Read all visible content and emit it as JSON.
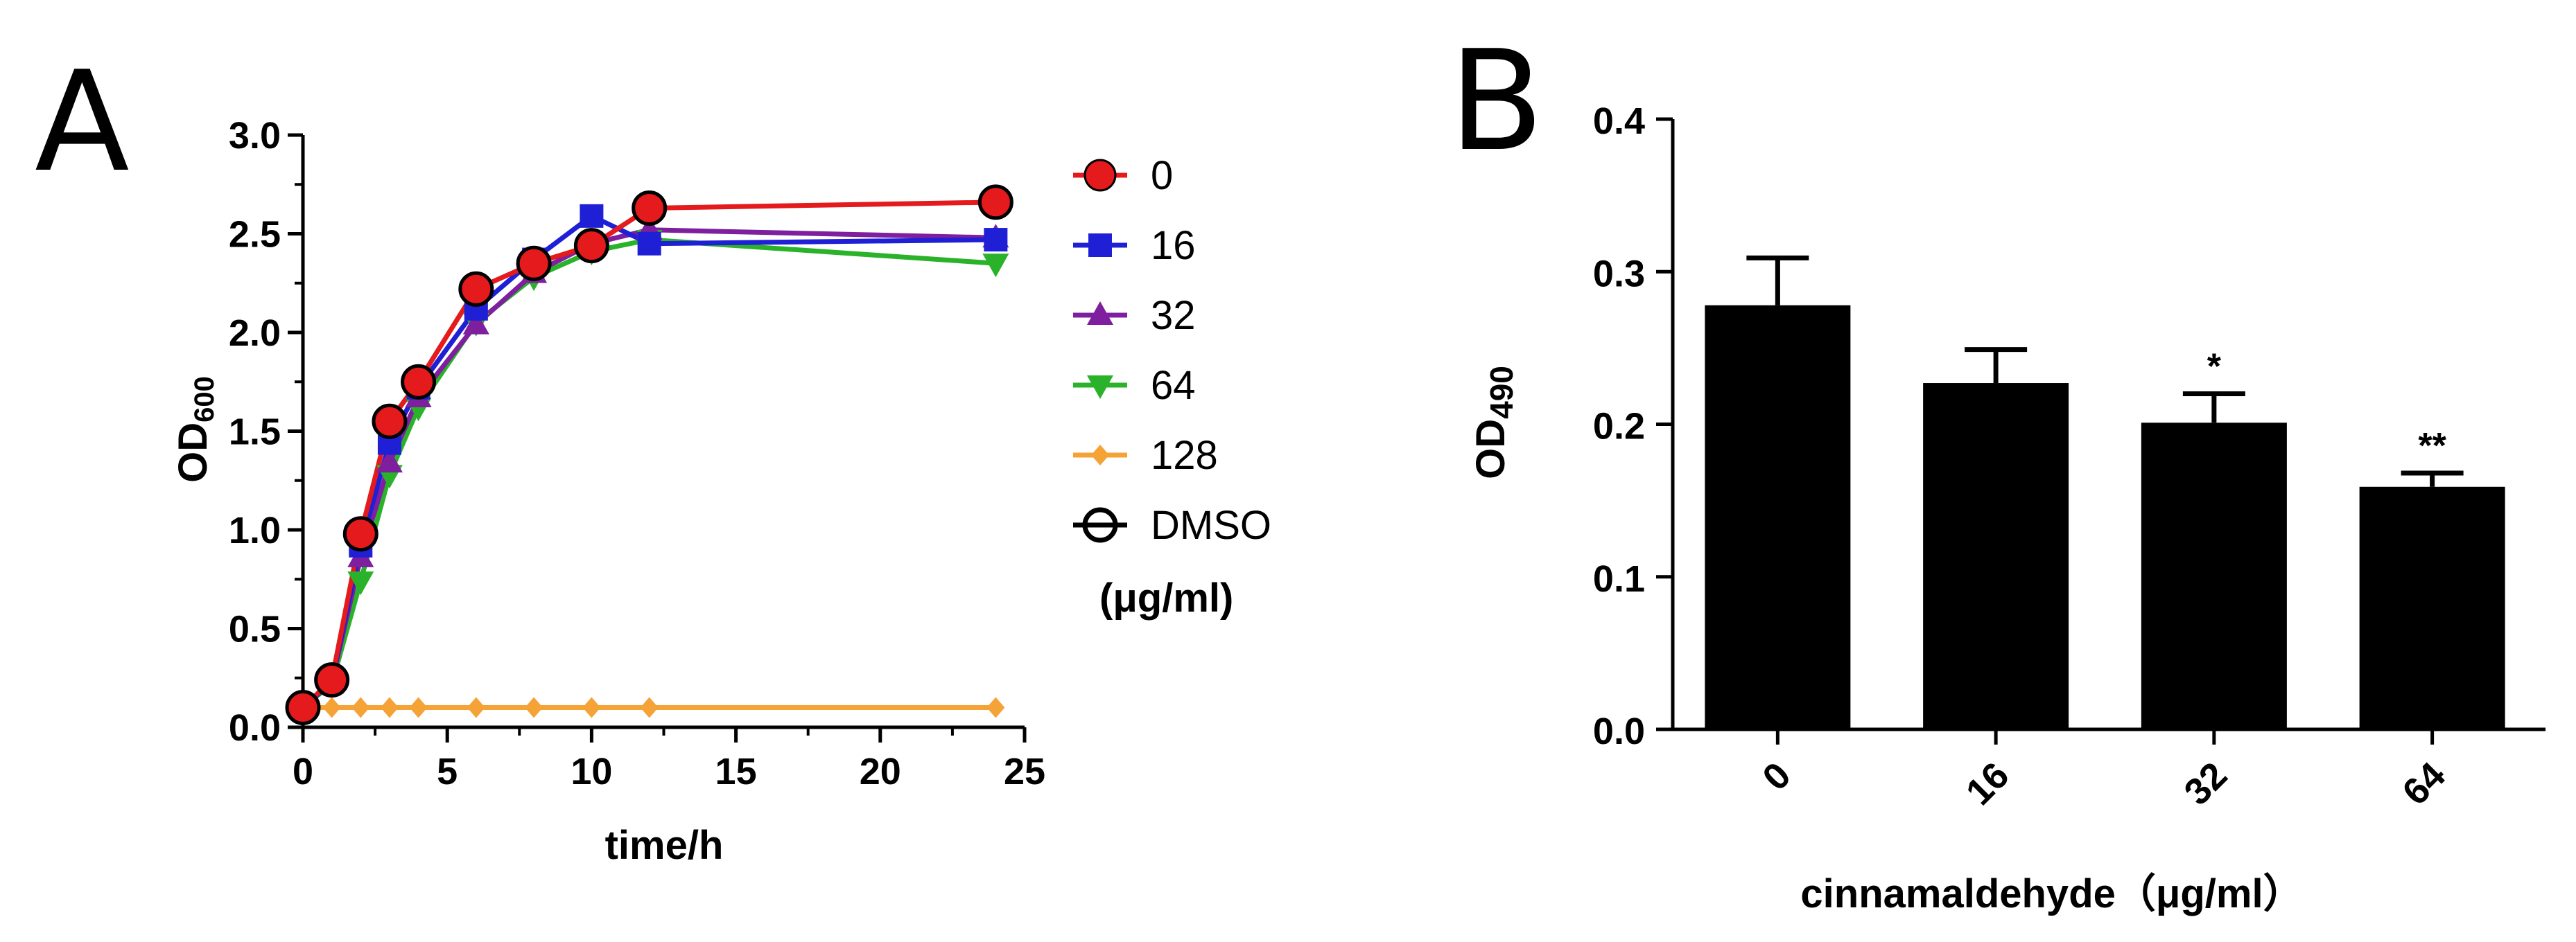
{
  "panels": {
    "a": "A",
    "b": "B"
  },
  "chart_data": [
    {
      "panel": "A",
      "type": "line",
      "xlabel": "time/h",
      "ylabel_main": "OD",
      "ylabel_sub": "600",
      "xlim": [
        0,
        25
      ],
      "ylim": [
        0,
        3.0
      ],
      "xticks": [
        "0",
        "5",
        "10",
        "15",
        "20",
        "25"
      ],
      "yticks": [
        "0.0",
        "0.5",
        "1.0",
        "1.5",
        "2.0",
        "2.5",
        "3.0"
      ],
      "legend_unit": "(μg/ml)",
      "x": [
        0,
        1,
        2,
        3,
        4,
        6,
        8,
        10,
        12,
        24
      ],
      "series": [
        {
          "name": "0",
          "color": "#e41a1c",
          "marker": "circle",
          "values": [
            0.1,
            0.24,
            0.98,
            1.55,
            1.75,
            2.22,
            2.35,
            2.44,
            2.63,
            2.66
          ]
        },
        {
          "name": "16",
          "color": "#1f1fd6",
          "marker": "square",
          "values": [
            0.1,
            0.23,
            0.92,
            1.44,
            1.72,
            2.12,
            2.37,
            2.59,
            2.45,
            2.47
          ]
        },
        {
          "name": "32",
          "color": "#7d1f9e",
          "marker": "triangle-up",
          "values": [
            0.1,
            0.23,
            0.86,
            1.34,
            1.67,
            2.04,
            2.3,
            2.45,
            2.52,
            2.48
          ]
        },
        {
          "name": "64",
          "color": "#2ab32a",
          "marker": "triangle-down",
          "values": [
            0.1,
            0.22,
            0.74,
            1.28,
            1.62,
            2.05,
            2.28,
            2.41,
            2.47,
            2.35
          ]
        },
        {
          "name": "128",
          "color": "#f5a236",
          "marker": "diamond",
          "values": [
            0.1,
            0.1,
            0.1,
            0.1,
            0.1,
            0.1,
            0.1,
            0.1,
            0.1,
            0.1
          ]
        },
        {
          "name": "DMSO",
          "color": "#000000",
          "marker": "open-circle",
          "values": [
            0.1,
            0.24,
            0.98,
            1.55,
            1.75,
            2.22,
            2.35,
            2.44,
            2.63,
            2.66
          ]
        }
      ]
    },
    {
      "panel": "B",
      "type": "bar",
      "xlabel": "cinnamaldehyde（μg/ml）",
      "ylabel_main": "OD",
      "ylabel_sub": "490",
      "ylim": [
        0,
        0.4
      ],
      "yticks": [
        "0.0",
        "0.1",
        "0.2",
        "0.3",
        "0.4"
      ],
      "categories": [
        "0",
        "16",
        "32",
        "64"
      ],
      "values": [
        0.278,
        0.227,
        0.201,
        0.159
      ],
      "errors": [
        0.031,
        0.022,
        0.019,
        0.009
      ],
      "significance": [
        "",
        "",
        "*",
        "**"
      ],
      "color": "#000000"
    }
  ]
}
